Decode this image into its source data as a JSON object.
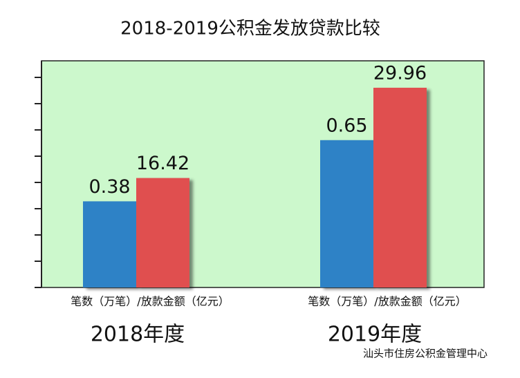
{
  "chart_data": {
    "type": "bar",
    "title": "2018-2019公积金发放贷款比较",
    "x_label": "笔数（万笔）/放款金额（亿元）",
    "categories": [
      "2018年度",
      "2019年度"
    ],
    "series": [
      {
        "color": "#2e82c6",
        "values": [
          0.38,
          0.65
        ],
        "axis": "y2"
      },
      {
        "color": "#e05050",
        "values": [
          16.42,
          29.96
        ]
      }
    ],
    "ylim": [
      0,
      34
    ],
    "y2lim": [
      0,
      1
    ],
    "background": "#ccf8cc",
    "watermark": "汕头市住房公积金管理中心"
  }
}
